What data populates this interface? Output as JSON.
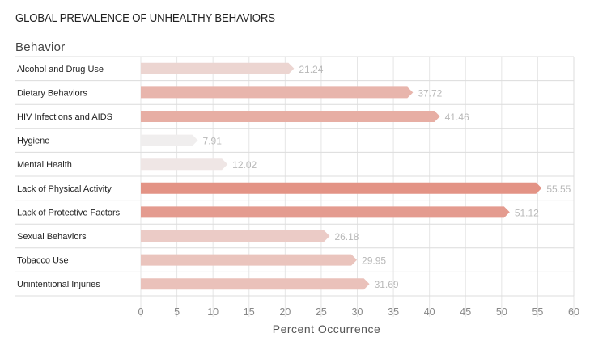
{
  "chart_data": {
    "type": "bar",
    "orientation": "horizontal",
    "title": "GLOBAL PREVALENCE OF UNHEALTHY BEHAVIORS",
    "row_header": "Behavior",
    "xlabel": "Percent Occurrence",
    "xlim": [
      0,
      60
    ],
    "xticks": [
      0,
      5,
      10,
      15,
      20,
      25,
      30,
      35,
      40,
      45,
      50,
      55,
      60
    ],
    "grid": "vertical-and-row-separators",
    "categories": [
      "Alcohol and Drug Use",
      "Dietary Behaviors",
      "HIV Infections and AIDS",
      "Hygiene",
      "Mental Health",
      "Lack of Physical Activity",
      "Lack of Protective Factors",
      "Sexual Behaviors",
      "Tobacco Use",
      "Unintentional Injuries"
    ],
    "values": [
      21.24,
      37.72,
      41.46,
      7.91,
      12.02,
      55.55,
      51.12,
      26.18,
      29.95,
      31.69
    ],
    "value_labels": [
      "21.24",
      "37.72",
      "41.46",
      "7.91",
      "12.02",
      "55.55",
      "51.12",
      "26.18",
      "29.95",
      "31.69"
    ],
    "color_low": "#f0eeee",
    "color_high": "#e39385"
  }
}
